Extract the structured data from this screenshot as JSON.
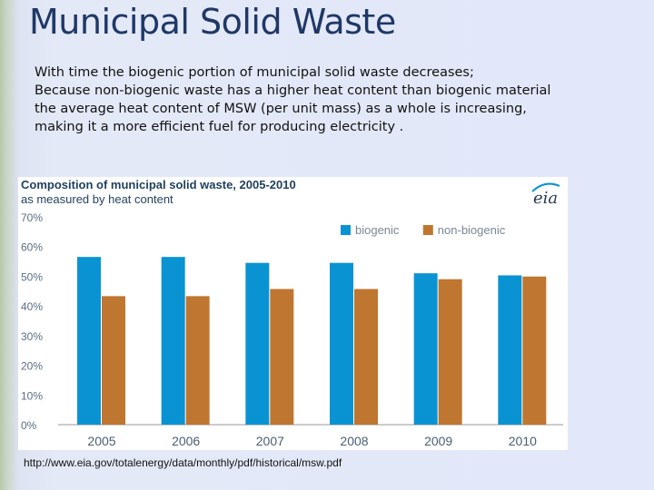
{
  "slide": {
    "title": "Municipal Solid Waste",
    "body_lines": [
      "With time the biogenic portion of municipal solid waste decreases;",
      "Because non-biogenic waste has a higher heat content than biogenic material",
      "the average heat content of MSW (per unit mass) as a whole is increasing,",
      "making it a more efficient fuel for producing electricity ."
    ],
    "source": "http://www.eia.gov/totalenergy/data/monthly/pdf/historical/msw.pdf"
  },
  "chart_data": {
    "type": "bar",
    "title": "Composition of municipal solid waste,  2005-2010",
    "subtitle": "as measured by heat content",
    "logo_text": "eia",
    "categories": [
      "2005",
      "2006",
      "2007",
      "2008",
      "2009",
      "2010"
    ],
    "series": [
      {
        "name": "biogenic",
        "color": "#0a93d3",
        "values": [
          56.5,
          56.5,
          54.5,
          54.5,
          51,
          50.3
        ]
      },
      {
        "name": "non-biogenic",
        "color": "#bf7630",
        "values": [
          43.3,
          43.3,
          45.7,
          45.7,
          49,
          49.9
        ]
      }
    ],
    "ylim": [
      0,
      70
    ],
    "yticks": [
      "0%",
      "10%",
      "20%",
      "30%",
      "40%",
      "50%",
      "60%",
      "70%"
    ],
    "legend": "top-right",
    "grid": false
  }
}
